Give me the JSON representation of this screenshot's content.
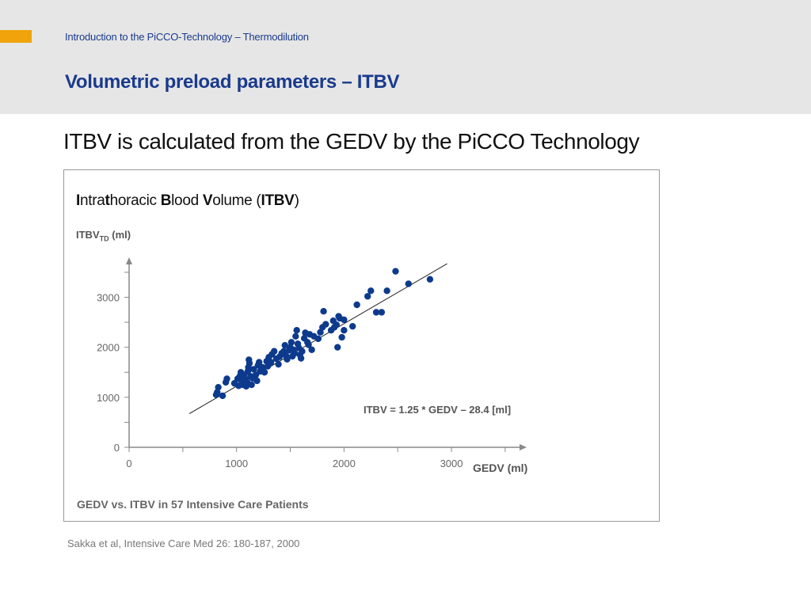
{
  "header": {
    "breadcrumb": "Introduction to the PiCCO-Technology – Thermodilution",
    "title": "Volumetric preload parameters – ITBV"
  },
  "subtitle": "ITBV is calculated from the GEDV by the PiCCO Technology",
  "chart_title": {
    "p1b": "I",
    "p1": "ntra",
    "p2b": "t",
    "p2": "horacic ",
    "p3b": "B",
    "p3": "lood ",
    "p4b": "V",
    "p4": "olume (",
    "p5b": "ITBV",
    "p5": ")"
  },
  "ylabel": {
    "main": "ITBV",
    "sub": "TD",
    "unit": " (ml)"
  },
  "caption": "GEDV vs. ITBV in 57 Intensive Care Patients",
  "citation": "Sakka et al, Intensive Care Med 26: 180-187, 2000",
  "colors": {
    "accent": "#f0a30a",
    "title_blue": "#1a3a8c",
    "point": "#0d3a8c"
  },
  "chart_data": {
    "type": "scatter",
    "title": "Intrathoracic Blood Volume (ITBV)",
    "xlabel": "GEDV (ml)",
    "ylabel": "ITBV TD (ml)",
    "xlim": [
      0,
      3700
    ],
    "ylim": [
      0,
      3800
    ],
    "x_ticks": [
      0,
      1000,
      2000,
      3000
    ],
    "y_ticks": [
      0,
      1000,
      2000,
      3000
    ],
    "x_tick_labels": [
      "0",
      "1000",
      "2000",
      "3000"
    ],
    "y_tick_labels": [
      "0",
      "1000",
      "2000",
      "3000"
    ],
    "equation": "ITBV = 1.25 * GEDV – 28.4 [ml]",
    "regression": {
      "slope": 1.25,
      "intercept": -28.4,
      "x_range": [
        560,
        2960
      ]
    },
    "grid": false,
    "series": [
      {
        "points": [
          [
            810,
            1050
          ],
          [
            820,
            1100
          ],
          [
            830,
            1200
          ],
          [
            870,
            1030
          ],
          [
            900,
            1300
          ],
          [
            910,
            1370
          ],
          [
            980,
            1280
          ],
          [
            1010,
            1370
          ],
          [
            1020,
            1230
          ],
          [
            1030,
            1420
          ],
          [
            1040,
            1500
          ],
          [
            1050,
            1310
          ],
          [
            1060,
            1250
          ],
          [
            1070,
            1450
          ],
          [
            1080,
            1360
          ],
          [
            1090,
            1220
          ],
          [
            1100,
            1300
          ],
          [
            1105,
            1520
          ],
          [
            1110,
            1600
          ],
          [
            1115,
            1750
          ],
          [
            1120,
            1680
          ],
          [
            1130,
            1420
          ],
          [
            1140,
            1250
          ],
          [
            1150,
            1380
          ],
          [
            1160,
            1560
          ],
          [
            1180,
            1450
          ],
          [
            1190,
            1330
          ],
          [
            1200,
            1640
          ],
          [
            1210,
            1700
          ],
          [
            1220,
            1520
          ],
          [
            1240,
            1600
          ],
          [
            1260,
            1500
          ],
          [
            1280,
            1720
          ],
          [
            1290,
            1620
          ],
          [
            1300,
            1800
          ],
          [
            1320,
            1700
          ],
          [
            1330,
            1860
          ],
          [
            1350,
            1920
          ],
          [
            1370,
            1770
          ],
          [
            1390,
            1660
          ],
          [
            1400,
            1810
          ],
          [
            1420,
            1880
          ],
          [
            1440,
            1920
          ],
          [
            1450,
            2040
          ],
          [
            1460,
            1830
          ],
          [
            1470,
            1760
          ],
          [
            1490,
            1940
          ],
          [
            1500,
            2000
          ],
          [
            1510,
            2100
          ],
          [
            1520,
            1820
          ],
          [
            1530,
            1950
          ],
          [
            1540,
            1880
          ],
          [
            1550,
            2220
          ],
          [
            1560,
            2340
          ],
          [
            1570,
            2070
          ],
          [
            1580,
            1990
          ],
          [
            1590,
            1850
          ],
          [
            1600,
            1780
          ],
          [
            1610,
            1920
          ],
          [
            1630,
            2180
          ],
          [
            1640,
            2290
          ],
          [
            1660,
            2100
          ],
          [
            1670,
            2050
          ],
          [
            1680,
            2260
          ],
          [
            1700,
            1950
          ],
          [
            1720,
            2220
          ],
          [
            1760,
            2170
          ],
          [
            1780,
            2300
          ],
          [
            1800,
            2400
          ],
          [
            1810,
            2720
          ],
          [
            1830,
            2460
          ],
          [
            1880,
            2340
          ],
          [
            1900,
            2530
          ],
          [
            1910,
            2400
          ],
          [
            1930,
            2450
          ],
          [
            1940,
            2000
          ],
          [
            1950,
            2620
          ],
          [
            1960,
            2580
          ],
          [
            1980,
            2200
          ],
          [
            2000,
            2550
          ],
          [
            2080,
            2420
          ],
          [
            2120,
            2850
          ],
          [
            2220,
            3020
          ],
          [
            2250,
            3130
          ],
          [
            2300,
            2700
          ],
          [
            2350,
            2700
          ],
          [
            2400,
            3130
          ],
          [
            2480,
            3520
          ],
          [
            2600,
            3270
          ],
          [
            2800,
            3360
          ],
          [
            2000,
            2340
          ]
        ]
      }
    ]
  }
}
